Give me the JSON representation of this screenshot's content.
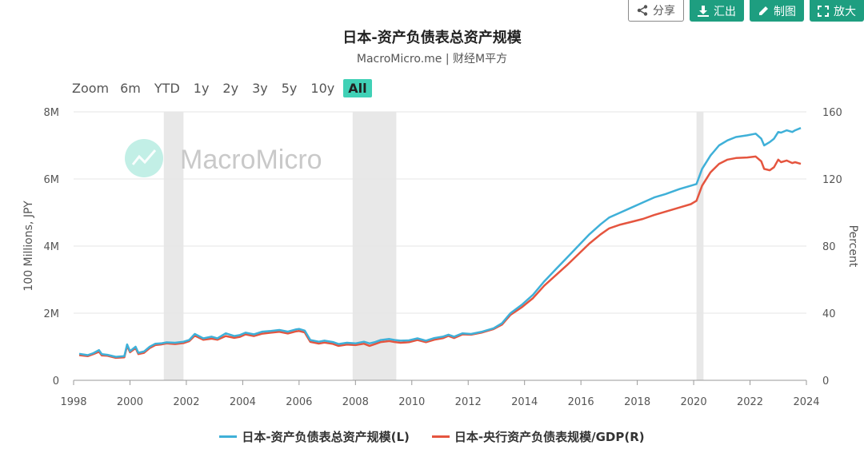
{
  "toolbar": {
    "share_label": "分享",
    "export_label": "汇出",
    "draw_label": "制图",
    "expand_label": "放大"
  },
  "zoom": {
    "label": "Zoom",
    "options": [
      "6m",
      "YTD",
      "1y",
      "2y",
      "3y",
      "5y",
      "10y",
      "All"
    ],
    "active": "All"
  },
  "watermark": "MacroMicro",
  "colors": {
    "series_total_assets": "#3fb0d8",
    "series_gdp_ratio": "#e5553f",
    "shade": "#e4e4e4",
    "active_zoom": "#40d1b6",
    "button_green": "#1e9e80"
  },
  "chart_data": {
    "type": "line",
    "title": "日本-资产负债表总资产规模",
    "subtitle": "MacroMicro.me | 财经M平方",
    "xlabel": "",
    "ylabel_left": "100 Millions, JPY",
    "ylabel_right": "Percent",
    "xlim": [
      1998,
      2024
    ],
    "ylim_left": [
      0,
      8000000
    ],
    "ylim_right": [
      0,
      160
    ],
    "x_ticks": [
      "1998",
      "2000",
      "2002",
      "2004",
      "2006",
      "2008",
      "2010",
      "2012",
      "2014",
      "2016",
      "2018",
      "2020",
      "2022",
      "2024"
    ],
    "y_left_ticks": [
      "0",
      "2M",
      "4M",
      "6M",
      "8M"
    ],
    "y_right_ticks": [
      "0",
      "40",
      "80",
      "120",
      "160"
    ],
    "grid": true,
    "legend_position": "bottom",
    "recession_bands": [
      [
        2001.2,
        2001.9
      ],
      [
        2007.9,
        2009.45
      ],
      [
        2020.1,
        2020.35
      ]
    ],
    "series": [
      {
        "name": "日本-资产负债表总资产规模(L)",
        "axis": "left",
        "x": [
          1998.2,
          1998.5,
          1998.7,
          1998.9,
          1999.0,
          1999.2,
          1999.5,
          1999.8,
          1999.9,
          2000.0,
          2000.2,
          2000.3,
          2000.5,
          2000.7,
          2000.9,
          2001.1,
          2001.3,
          2001.6,
          2001.9,
          2002.1,
          2002.3,
          2002.6,
          2002.9,
          2003.1,
          2003.4,
          2003.7,
          2003.9,
          2004.1,
          2004.4,
          2004.7,
          2005.0,
          2005.3,
          2005.6,
          2005.9,
          2006.0,
          2006.2,
          2006.4,
          2006.7,
          2006.9,
          2007.2,
          2007.4,
          2007.7,
          2008.0,
          2008.3,
          2008.5,
          2008.7,
          2008.9,
          2009.2,
          2009.4,
          2009.6,
          2009.9,
          2010.2,
          2010.5,
          2010.8,
          2011.1,
          2011.3,
          2011.5,
          2011.8,
          2012.1,
          2012.5,
          2012.9,
          2013.2,
          2013.5,
          2013.9,
          2014.3,
          2014.7,
          2015.1,
          2015.5,
          2015.9,
          2016.3,
          2016.7,
          2017.0,
          2017.4,
          2017.8,
          2018.2,
          2018.6,
          2019.0,
          2019.5,
          2019.9,
          2020.1,
          2020.3,
          2020.6,
          2020.9,
          2021.2,
          2021.5,
          2021.9,
          2022.2,
          2022.4,
          2022.5,
          2022.7,
          2022.85,
          2023.0,
          2023.1,
          2023.3,
          2023.5,
          2023.6,
          2023.8
        ],
        "values": [
          790000,
          750000,
          810000,
          900000,
          780000,
          760000,
          700000,
          720000,
          1070000,
          870000,
          1000000,
          820000,
          860000,
          1000000,
          1090000,
          1100000,
          1130000,
          1120000,
          1150000,
          1200000,
          1380000,
          1250000,
          1300000,
          1250000,
          1400000,
          1320000,
          1350000,
          1420000,
          1370000,
          1450000,
          1470000,
          1500000,
          1450000,
          1520000,
          1530000,
          1480000,
          1200000,
          1150000,
          1180000,
          1140000,
          1080000,
          1120000,
          1100000,
          1150000,
          1100000,
          1140000,
          1200000,
          1230000,
          1200000,
          1180000,
          1190000,
          1250000,
          1180000,
          1260000,
          1300000,
          1360000,
          1300000,
          1400000,
          1380000,
          1450000,
          1550000,
          1700000,
          2000000,
          2250000,
          2550000,
          2950000,
          3300000,
          3650000,
          4000000,
          4350000,
          4650000,
          4850000,
          5000000,
          5150000,
          5300000,
          5450000,
          5550000,
          5700000,
          5800000,
          5850000,
          6300000,
          6700000,
          7000000,
          7150000,
          7250000,
          7300000,
          7350000,
          7200000,
          7000000,
          7100000,
          7200000,
          7400000,
          7380000,
          7450000,
          7400000,
          7450000,
          7520000
        ]
      },
      {
        "name": "日本-央行资产负债表规模/GDP(R)",
        "axis": "right",
        "x": [
          1998.2,
          1998.5,
          1998.7,
          1998.9,
          1999.0,
          1999.2,
          1999.5,
          1999.8,
          1999.9,
          2000.0,
          2000.2,
          2000.3,
          2000.5,
          2000.7,
          2000.9,
          2001.1,
          2001.3,
          2001.6,
          2001.9,
          2002.1,
          2002.3,
          2002.6,
          2002.9,
          2003.1,
          2003.4,
          2003.7,
          2003.9,
          2004.1,
          2004.4,
          2004.7,
          2005.0,
          2005.3,
          2005.6,
          2005.9,
          2006.0,
          2006.2,
          2006.4,
          2006.7,
          2006.9,
          2007.2,
          2007.4,
          2007.7,
          2008.0,
          2008.3,
          2008.5,
          2008.7,
          2008.9,
          2009.2,
          2009.4,
          2009.6,
          2009.9,
          2010.2,
          2010.5,
          2010.8,
          2011.1,
          2011.3,
          2011.5,
          2011.8,
          2012.1,
          2012.5,
          2012.9,
          2013.2,
          2013.5,
          2013.9,
          2014.3,
          2014.7,
          2015.1,
          2015.5,
          2015.9,
          2016.3,
          2016.7,
          2017.0,
          2017.4,
          2017.8,
          2018.2,
          2018.6,
          2019.0,
          2019.5,
          2019.9,
          2020.1,
          2020.3,
          2020.6,
          2020.9,
          2021.2,
          2021.5,
          2021.9,
          2022.2,
          2022.4,
          2022.5,
          2022.7,
          2022.85,
          2023.0,
          2023.1,
          2023.3,
          2023.5,
          2023.6,
          2023.8
        ],
        "values": [
          15.0,
          14.4,
          15.6,
          17.0,
          14.8,
          14.6,
          13.4,
          13.7,
          20.5,
          16.7,
          19.2,
          15.6,
          16.4,
          19.2,
          21.0,
          21.4,
          22.0,
          21.6,
          22.2,
          23.3,
          26.6,
          24.2,
          24.8,
          24.2,
          26.4,
          25.3,
          25.9,
          27.4,
          26.4,
          27.8,
          28.4,
          28.9,
          27.9,
          29.2,
          29.4,
          28.5,
          22.9,
          21.9,
          22.5,
          21.7,
          20.5,
          21.3,
          21.0,
          21.8,
          20.5,
          21.6,
          22.8,
          23.4,
          22.8,
          22.4,
          22.7,
          24.0,
          22.7,
          24.2,
          25.1,
          26.5,
          25.2,
          27.4,
          27.2,
          28.5,
          30.5,
          33.2,
          39.0,
          43.5,
          49.0,
          56.5,
          62.5,
          68.5,
          75.0,
          81.5,
          87.0,
          90.5,
          92.8,
          94.5,
          96.2,
          98.5,
          100.5,
          103.0,
          105.0,
          107.0,
          116.0,
          124.0,
          129.0,
          131.5,
          132.5,
          132.8,
          133.4,
          130.5,
          126.0,
          125.2,
          127.0,
          131.5,
          130.0,
          131.0,
          129.5,
          130.0,
          129.0
        ]
      }
    ]
  }
}
